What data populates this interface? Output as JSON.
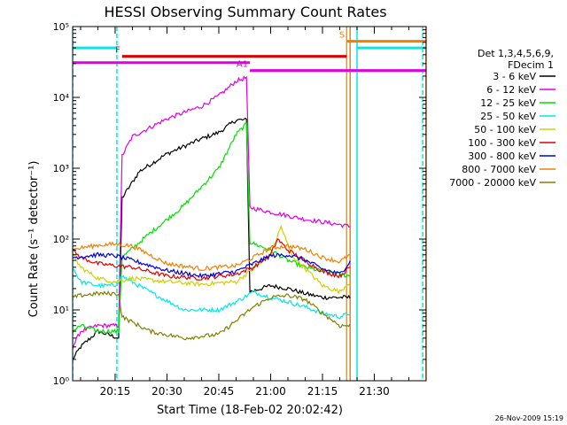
{
  "chart_data": {
    "type": "line",
    "title": "HESSI Observing Summary Count Rates",
    "xlabel": "Start Time (18-Feb-02 20:02:42)",
    "ylabel": "Count Rate (s⁻¹ detector⁻¹)",
    "y_scale": "log",
    "ylim": [
      1,
      100000
    ],
    "y_ticks": [
      {
        "value": 1,
        "label": "10⁰"
      },
      {
        "value": 10,
        "label": "10¹"
      },
      {
        "value": 100,
        "label": "10²"
      },
      {
        "value": 1000,
        "label": "10³"
      },
      {
        "value": 10000,
        "label": "10⁴"
      },
      {
        "value": 100000,
        "label": "10⁵"
      }
    ],
    "xlim": [
      "20:02:42",
      "21:45:00"
    ],
    "x_ticks": [
      "20:15",
      "20:30",
      "20:45",
      "21:00",
      "21:15",
      "21:30"
    ],
    "legend": {
      "placement": "right",
      "header": [
        "Det 1,3,4,5,6,9,",
        "FDecim 1"
      ]
    },
    "series": [
      {
        "name": "3 - 6 keV",
        "color": "#000000",
        "points": [
          [
            "20:02:42",
            2
          ],
          [
            "20:05",
            3
          ],
          [
            "20:10",
            5
          ],
          [
            "20:16",
            4
          ],
          [
            "20:17",
            380
          ],
          [
            "20:22",
            900
          ],
          [
            "20:30",
            1600
          ],
          [
            "20:40",
            2600
          ],
          [
            "20:45",
            3200
          ],
          [
            "20:50",
            4800
          ],
          [
            "20:53",
            4800
          ],
          [
            "20:54",
            18
          ],
          [
            "21:00",
            22
          ],
          [
            "21:05",
            20
          ],
          [
            "21:10",
            17
          ],
          [
            "21:15",
            15
          ],
          [
            "21:23",
            15
          ]
        ]
      },
      {
        "name": "6 - 12 keV",
        "color": "#e000e0",
        "points": [
          [
            "20:02:42",
            3
          ],
          [
            "20:05",
            5
          ],
          [
            "20:10",
            6
          ],
          [
            "20:16",
            6
          ],
          [
            "20:17",
            1500
          ],
          [
            "20:20",
            2800
          ],
          [
            "20:30",
            5000
          ],
          [
            "20:40",
            7500
          ],
          [
            "20:45",
            10500
          ],
          [
            "20:50",
            17000
          ],
          [
            "20:53",
            19000
          ],
          [
            "20:54",
            280
          ],
          [
            "21:00",
            240
          ],
          [
            "21:10",
            190
          ],
          [
            "21:20",
            160
          ],
          [
            "21:23",
            150
          ]
        ]
      },
      {
        "name": "12 - 25 keV",
        "color": "#00e000",
        "points": [
          [
            "20:02:42",
            5
          ],
          [
            "20:05",
            6
          ],
          [
            "20:10",
            5
          ],
          [
            "20:16",
            5
          ],
          [
            "20:17",
            55
          ],
          [
            "20:25",
            120
          ],
          [
            "20:35",
            300
          ],
          [
            "20:45",
            1000
          ],
          [
            "20:50",
            3000
          ],
          [
            "20:53",
            4200
          ],
          [
            "20:54",
            90
          ],
          [
            "21:00",
            70
          ],
          [
            "21:05",
            50
          ],
          [
            "21:10",
            40
          ],
          [
            "21:15",
            35
          ],
          [
            "21:23",
            30
          ]
        ]
      },
      {
        "name": "25 - 50 keV",
        "color": "#00e8e8",
        "points": [
          [
            "20:02:42",
            40
          ],
          [
            "20:05",
            25
          ],
          [
            "20:10",
            22
          ],
          [
            "20:15",
            22
          ],
          [
            "20:17",
            30
          ],
          [
            "20:25",
            18
          ],
          [
            "20:35",
            10
          ],
          [
            "20:45",
            10
          ],
          [
            "20:50",
            13
          ],
          [
            "20:55",
            18
          ],
          [
            "21:00",
            15
          ],
          [
            "21:05",
            13
          ],
          [
            "21:10",
            11
          ],
          [
            "21:15",
            9
          ],
          [
            "21:20",
            8
          ],
          [
            "21:23",
            9
          ]
        ]
      },
      {
        "name": "50 - 100 keV",
        "color": "#d0d000",
        "points": [
          [
            "20:02:42",
            60
          ],
          [
            "20:05",
            40
          ],
          [
            "20:10",
            28
          ],
          [
            "20:15",
            25
          ],
          [
            "20:20",
            28
          ],
          [
            "20:30",
            25
          ],
          [
            "20:40",
            23
          ],
          [
            "20:50",
            25
          ],
          [
            "20:55",
            38
          ],
          [
            "21:00",
            60
          ],
          [
            "21:03",
            150
          ],
          [
            "21:06",
            60
          ],
          [
            "21:15",
            22
          ],
          [
            "21:20",
            18
          ],
          [
            "21:23",
            25
          ]
        ]
      },
      {
        "name": "100 - 300 keV",
        "color": "#e00000",
        "points": [
          [
            "20:02:42",
            70
          ],
          [
            "20:05",
            55
          ],
          [
            "20:10",
            45
          ],
          [
            "20:15",
            42
          ],
          [
            "20:20",
            40
          ],
          [
            "20:30",
            30
          ],
          [
            "20:40",
            28
          ],
          [
            "20:50",
            32
          ],
          [
            "20:55",
            40
          ],
          [
            "21:00",
            60
          ],
          [
            "21:02",
            100
          ],
          [
            "21:05",
            70
          ],
          [
            "21:15",
            35
          ],
          [
            "21:20",
            30
          ],
          [
            "21:23",
            40
          ]
        ]
      },
      {
        "name": "300 - 800 keV",
        "color": "#0000e0",
        "points": [
          [
            "20:02:42",
            55
          ],
          [
            "20:10",
            60
          ],
          [
            "20:15",
            58
          ],
          [
            "20:20",
            50
          ],
          [
            "20:30",
            36
          ],
          [
            "20:40",
            30
          ],
          [
            "20:50",
            35
          ],
          [
            "20:55",
            45
          ],
          [
            "21:00",
            58
          ],
          [
            "21:05",
            60
          ],
          [
            "21:10",
            50
          ],
          [
            "21:15",
            38
          ],
          [
            "21:20",
            32
          ],
          [
            "21:23",
            48
          ]
        ]
      },
      {
        "name": "800 - 7000 keV",
        "color": "#f08000",
        "points": [
          [
            "20:02:42",
            70
          ],
          [
            "20:05",
            75
          ],
          [
            "20:10",
            82
          ],
          [
            "20:15",
            85
          ],
          [
            "20:20",
            80
          ],
          [
            "20:25",
            60
          ],
          [
            "20:30",
            45
          ],
          [
            "20:40",
            38
          ],
          [
            "20:50",
            42
          ],
          [
            "20:55",
            55
          ],
          [
            "21:00",
            75
          ],
          [
            "21:05",
            80
          ],
          [
            "21:10",
            72
          ],
          [
            "21:15",
            55
          ],
          [
            "21:20",
            48
          ],
          [
            "21:23",
            60
          ]
        ]
      },
      {
        "name": "7000 - 20000 keV",
        "color": "#808000",
        "points": [
          [
            "20:02:42",
            15
          ],
          [
            "20:05",
            16
          ],
          [
            "20:10",
            17
          ],
          [
            "20:16",
            17
          ],
          [
            "20:17",
            8
          ],
          [
            "20:25",
            5
          ],
          [
            "20:35",
            4
          ],
          [
            "20:45",
            4.5
          ],
          [
            "20:50",
            7
          ],
          [
            "20:55",
            11
          ],
          [
            "21:00",
            15
          ],
          [
            "21:05",
            16
          ],
          [
            "21:10",
            14
          ],
          [
            "21:15",
            9
          ],
          [
            "21:20",
            6
          ],
          [
            "21:23",
            6
          ]
        ]
      }
    ],
    "annotations": [
      {
        "label": "N",
        "color": "#00e8e8",
        "level": 50000,
        "segments": [
          [
            "20:02:42",
            "20:15:30"
          ],
          [
            "21:25",
            "21:45:00"
          ]
        ]
      },
      {
        "label": "F",
        "color": "#e00000",
        "level": 38000,
        "segments": [
          [
            "20:17",
            "21:22"
          ]
        ]
      },
      {
        "label": "A0",
        "color": "#e000e0",
        "level": 31000,
        "segments": [
          [
            "20:02:42",
            "20:54"
          ]
        ]
      },
      {
        "label": "A1",
        "color": "#e000e0",
        "level": 24000,
        "segments": [
          [
            "20:54",
            "21:45:00"
          ]
        ]
      },
      {
        "label": "S",
        "color": "#f08000",
        "level": 62000,
        "segments": [
          [
            "21:22",
            "21:45:00"
          ]
        ]
      }
    ],
    "vertical_markers": [
      {
        "time": "20:02:42",
        "color": "#00e8e8",
        "style": "dashed"
      },
      {
        "time": "20:15:30",
        "color": "#00e8e8",
        "style": "dashed"
      },
      {
        "time": "21:22",
        "color": "#d0a030",
        "style": "solid"
      },
      {
        "time": "21:23",
        "color": "#f08000",
        "style": "solid"
      },
      {
        "time": "21:25",
        "color": "#00e8e8",
        "style": "solid"
      },
      {
        "time": "21:44",
        "color": "#00e8e8",
        "style": "dashed"
      },
      {
        "time": "21:45",
        "color": "#f08000",
        "style": "solid"
      }
    ]
  },
  "footer": {
    "timestamp": "26-Nov-2009 15:19"
  }
}
